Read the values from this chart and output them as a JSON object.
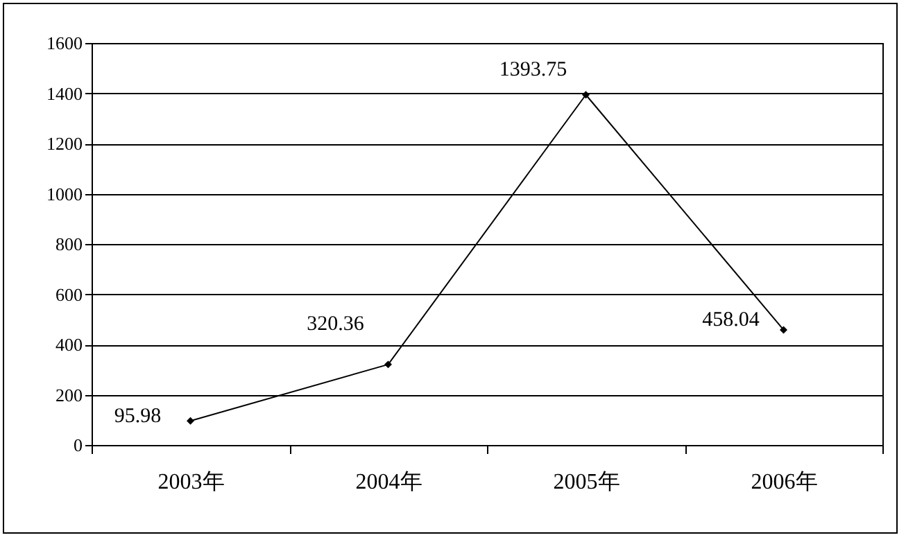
{
  "chart_data": {
    "type": "line",
    "categories": [
      "2003年",
      "2004年",
      "2005年",
      "2006年"
    ],
    "series": [
      {
        "color": "#000000",
        "values": [
          95.98,
          320.36,
          1393.75,
          458.04
        ]
      }
    ],
    "ylim": [
      0,
      1600
    ],
    "yticks": [
      0,
      200,
      400,
      600,
      800,
      1000,
      1200,
      1400,
      1600
    ],
    "grid": "y",
    "marker": "diamond",
    "line_style": "solid",
    "data_labels": true
  }
}
